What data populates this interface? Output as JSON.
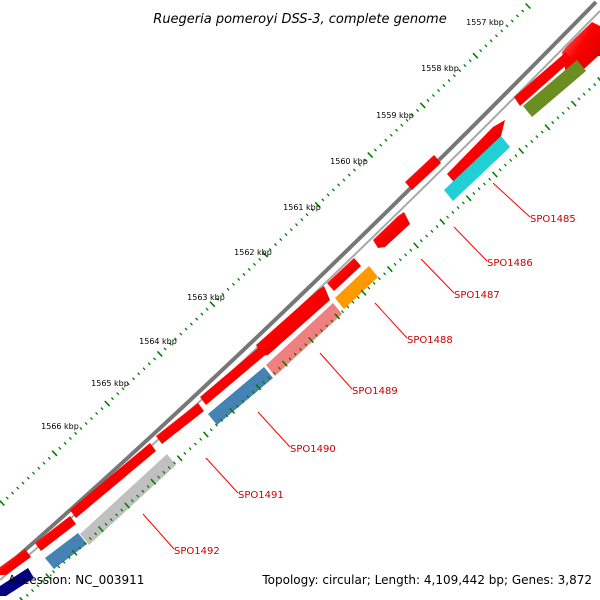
{
  "title": "Ruegeria pomeroyi DSS-3, complete genome",
  "footer": {
    "accession": "Accession: NC_003911",
    "topology": "Topology: circular; Length: 4,109,442 bp; Genes: 3,872"
  },
  "scale_labels": [
    "1557 kbp",
    "1558 kbp",
    "1559 kbp",
    "1560 kbp",
    "1561 kbp",
    "1562 kbp",
    "1563 kbp",
    "1564 kbp",
    "1565 kbp",
    "1566 kbp"
  ],
  "genes": [
    "SPO1485",
    "SPO1486",
    "SPO1487",
    "SPO1488",
    "SPO1489",
    "SPO1490",
    "SPO1491",
    "SPO1492"
  ],
  "colors": {
    "backbone": "#808080",
    "cds": "#ff0000",
    "ticks": "#007f00",
    "label": "#cc0000",
    "cog_olive": "#6b8e23",
    "cog_cyan": "#00ced1",
    "cog_orange": "#ff9900",
    "cog_pink": "#f08080",
    "cog_steel": "#4682b4",
    "cog_gray": "#c0c0c0",
    "cog_navy": "#000080"
  }
}
